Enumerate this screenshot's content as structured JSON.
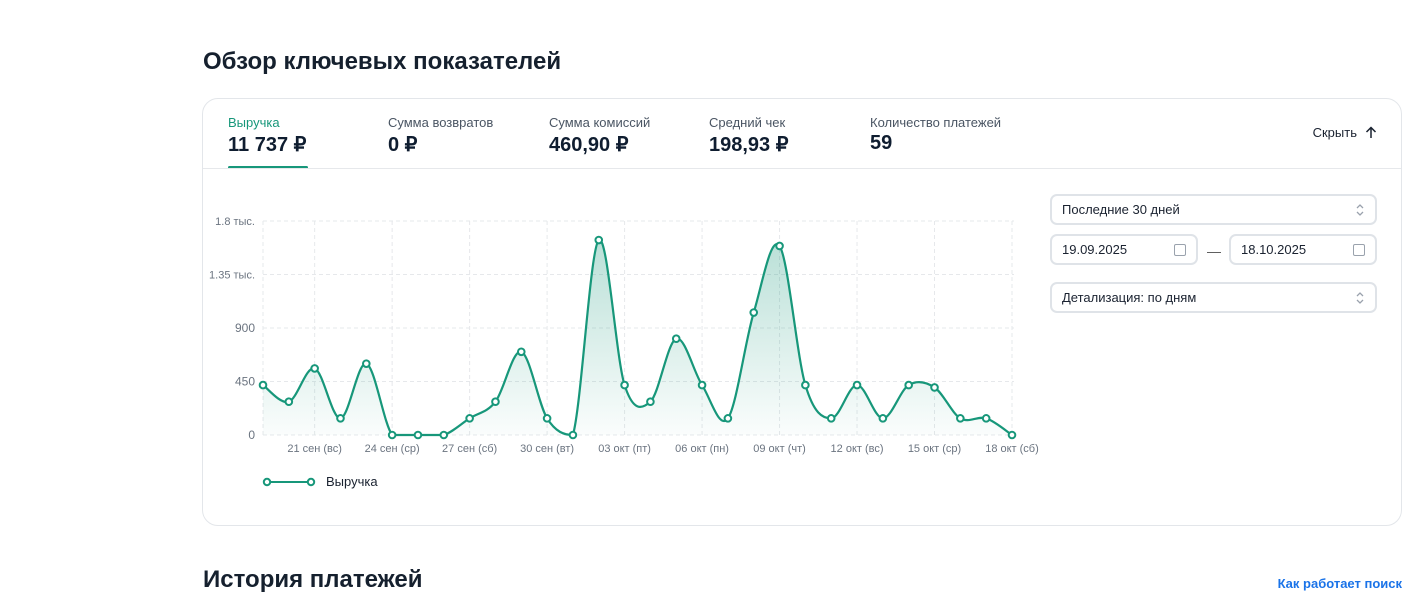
{
  "page_title": "Обзор ключевых показателей",
  "metrics": [
    {
      "label": "Выручка",
      "value": "11 737 ₽",
      "active": true
    },
    {
      "label": "Сумма возвратов",
      "value": "0 ₽"
    },
    {
      "label": "Сумма комиссий",
      "value": "460,90 ₽"
    },
    {
      "label": "Средний чек",
      "value": "198,93 ₽"
    },
    {
      "label": "Количество платежей",
      "value": "59"
    }
  ],
  "hide_label": "Скрыть",
  "period_select": "Последние 30 дней",
  "date_from": "19.09.2025",
  "date_to": "18.10.2025",
  "date_separator": "—",
  "detail_select": "Детализация: по дням",
  "history_title": "История платежей",
  "help_link": "Как работает поиск",
  "colors": {
    "accent": "#17977a"
  },
  "chart_data": {
    "type": "line",
    "series": [
      {
        "name": "Выручка",
        "values": [
          420,
          280,
          560,
          140,
          600,
          0,
          0,
          0,
          140,
          280,
          700,
          140,
          0,
          1640,
          420,
          280,
          810,
          420,
          140,
          1030,
          1590,
          420,
          140,
          420,
          140,
          420,
          400,
          140,
          140,
          0
        ]
      }
    ],
    "x": [
      "19 сен",
      "20 сен",
      "21 сен (вс)",
      "22 сен",
      "23 сен",
      "24 сен (ср)",
      "25 сен",
      "26 сен",
      "27 сен (сб)",
      "28 сен",
      "29 сен",
      "30 сен (вт)",
      "01 окт",
      "02 окт",
      "03 окт (пт)",
      "04 окт",
      "05 окт",
      "06 окт (пн)",
      "07 окт",
      "08 окт",
      "09 окт (чт)",
      "10 окт",
      "11 окт",
      "12 окт (вс)",
      "13 окт",
      "14 окт",
      "15 окт (ср)",
      "16 окт",
      "17 окт",
      "18 окт (сб)"
    ],
    "x_tick_labels": [
      "21 сен (вс)",
      "24 сен (ср)",
      "27 сен (сб)",
      "30 сен (вт)",
      "03 окт (пт)",
      "06 окт (пн)",
      "09 окт (чт)",
      "12 окт (вс)",
      "15 окт (ср)",
      "18 окт (сб)"
    ],
    "x_tick_indices": [
      2,
      5,
      8,
      11,
      14,
      17,
      20,
      23,
      26,
      29
    ],
    "y_ticks": [
      0,
      450,
      900,
      1350,
      1800
    ],
    "y_tick_labels": [
      "0",
      "450",
      "900",
      "1.35 тыс.",
      "1.8 тыс."
    ],
    "ylim": [
      0,
      1800
    ],
    "grid": true,
    "legend": "bottom-left"
  }
}
